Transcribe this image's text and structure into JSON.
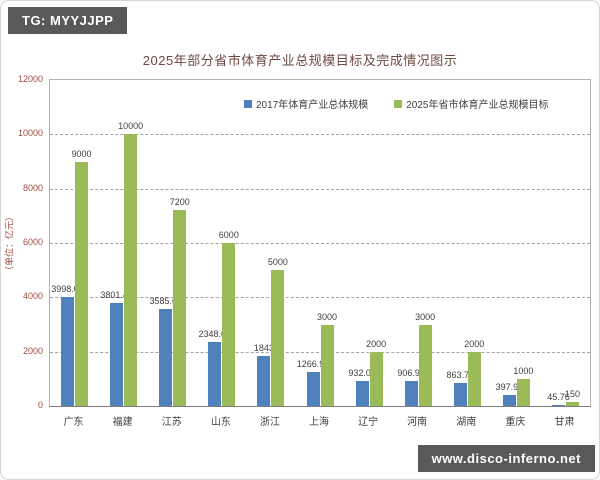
{
  "badges": {
    "top_left": "TG: MYYJJPP",
    "bottom_right": "www.disco-inferno.net"
  },
  "chart_data": {
    "type": "bar",
    "title": "2025年部分省市体育产业总规模目标及完成情况图示",
    "ylabel": "（单位：亿元）",
    "xlabel": "",
    "categories": [
      "广东",
      "福建",
      "江苏",
      "山东",
      "浙江",
      "上海",
      "辽宁",
      "河南",
      "湖南",
      "重庆",
      "甘肃"
    ],
    "series": [
      {
        "name": "2017年体育产业总体规模",
        "color": "#4f81bd",
        "values": [
          3998.03,
          3801.41,
          3585.64,
          2348.01,
          1843,
          1266.93,
          932.09,
          906.99,
          863.74,
          397.91,
          45.76
        ]
      },
      {
        "name": "2025年省市体育产业总规模目标",
        "color": "#9bbb59",
        "values": [
          9000,
          10000,
          7200,
          6000,
          5000,
          3000,
          2000,
          3000,
          2000,
          1000,
          150
        ]
      }
    ],
    "ylim": [
      0,
      12000
    ],
    "ytick_step": 2000,
    "grid": "horizontal-dashed",
    "legend_position": "top-inside",
    "data_labels": true
  },
  "colors": {
    "badge_background": "#595959",
    "badge_text": "#ffffff",
    "title_text": "#6e4a42",
    "axis_tick_text": "#a04b40",
    "data_label_text": "#3f3f3f",
    "series_blue": "#4f81bd",
    "series_green": "#9bbb59",
    "gridline": "#a3a3a3"
  }
}
